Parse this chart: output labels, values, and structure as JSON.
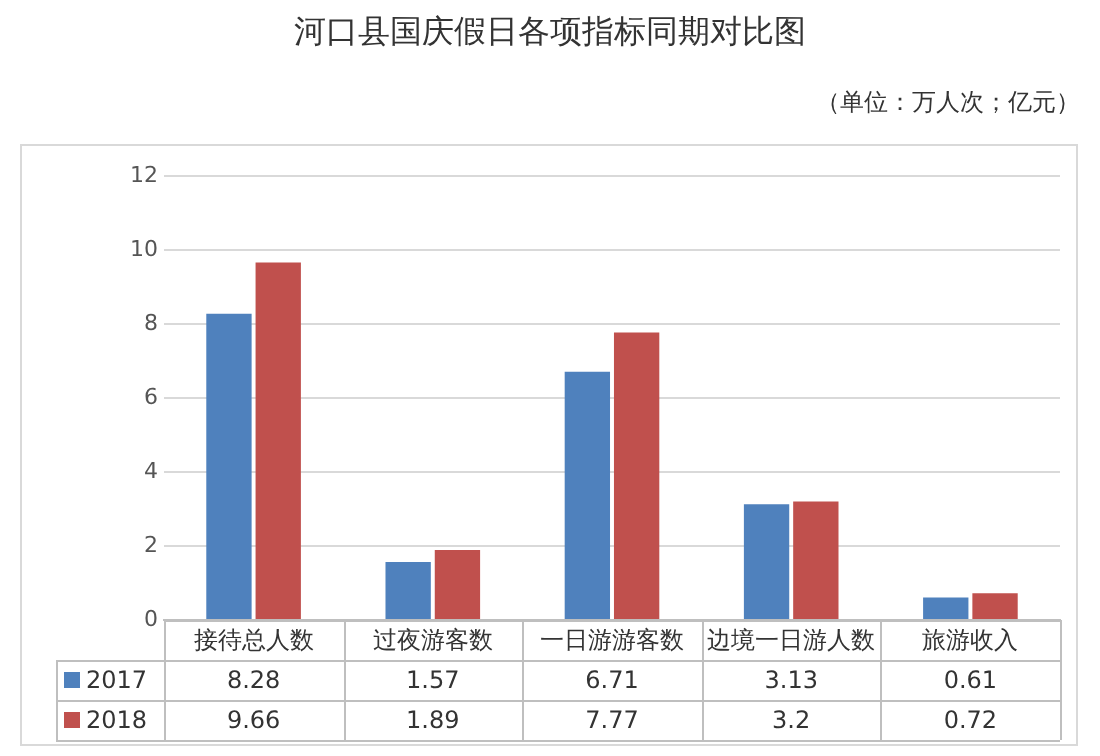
{
  "chart_data": {
    "type": "bar",
    "title": "河口县国庆假日各项指标同期对比图",
    "subtitle": "（单位：万人次；亿元）",
    "categories": [
      "接待总人数",
      "过夜游客数",
      "一日游游客数",
      "边境一日游人数",
      "旅游收入"
    ],
    "series": [
      {
        "name": "2017",
        "color": "#4f81bd",
        "values": [
          8.28,
          1.57,
          6.71,
          3.13,
          0.61
        ]
      },
      {
        "name": "2018",
        "color": "#c0504d",
        "values": [
          9.66,
          1.89,
          7.77,
          3.2,
          0.72
        ]
      }
    ],
    "ylim": [
      0,
      12
    ],
    "yticks": [
      0,
      2,
      4,
      6,
      8,
      10,
      12
    ],
    "grid": "y",
    "legend": "bottom",
    "data_labels": true
  }
}
